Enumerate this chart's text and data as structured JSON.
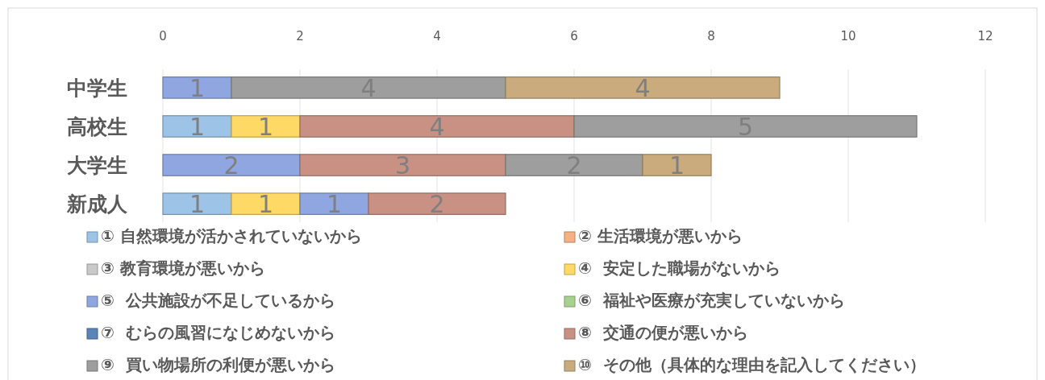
{
  "chart_data": {
    "type": "bar",
    "orientation": "horizontal",
    "stacked": true,
    "categories": [
      "中学生",
      "高校生",
      "大学生",
      "新成人"
    ],
    "xlim": [
      0,
      12
    ],
    "xticks": [
      0,
      2,
      4,
      6,
      8,
      10,
      12
    ],
    "grid": "x",
    "legend": "bottom",
    "data_labels": true,
    "series": [
      {
        "name": "① 自然環境が活かされていないから",
        "color": "#9dc3e6",
        "values": [
          null,
          1,
          null,
          1
        ]
      },
      {
        "name": "② 生活環境が悪いから",
        "color": "#f4b183",
        "values": [
          null,
          null,
          null,
          null
        ]
      },
      {
        "name": "③ 教育環境が悪いから",
        "color": "#c9c9c9",
        "values": [
          null,
          null,
          null,
          null
        ]
      },
      {
        "name": "④  安定した職場がないから",
        "color": "#ffd966",
        "values": [
          null,
          1,
          null,
          1
        ]
      },
      {
        "name": "⑤  公共施設が不足しているから",
        "color": "#8fa6e0",
        "values": [
          1,
          null,
          2,
          1
        ]
      },
      {
        "name": "⑥  福祉や医療が充実していないから",
        "color": "#a9d18e",
        "values": [
          null,
          null,
          null,
          null
        ]
      },
      {
        "name": "⑦  むらの風習になじめないから",
        "color": "#5b84b8",
        "values": [
          null,
          null,
          null,
          null
        ]
      },
      {
        "name": "⑧  交通の便が悪いから",
        "color": "#c99184",
        "values": [
          null,
          4,
          3,
          2
        ]
      },
      {
        "name": "⑨  買い物場所の利便が悪いから",
        "color": "#9e9e9e",
        "values": [
          4,
          5,
          2,
          null
        ]
      },
      {
        "name": "⑩  その他（具体的な理由を記入してください）",
        "color": "#c9ab7e",
        "values": [
          4,
          null,
          1,
          null
        ]
      }
    ]
  }
}
